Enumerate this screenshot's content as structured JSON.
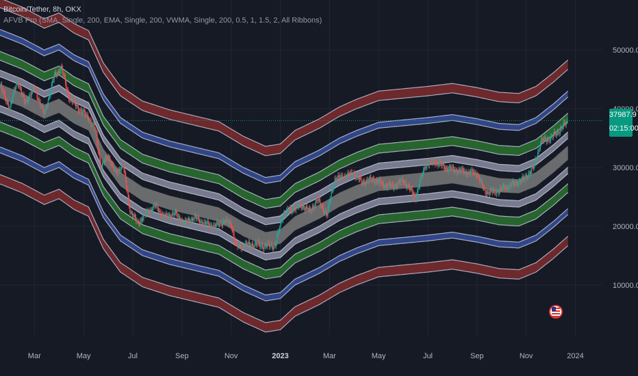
{
  "legend": {
    "symbol": "Bitcoin/Tether, 8h, OKX",
    "indicator": "AFVB Pro (SMA, Single, 200, EMA, Single, 200, VWMA, Single, 200, 0.5, 1, 1.5, 2, All Ribbons)"
  },
  "price_tag": {
    "price": "37987.9",
    "countdown": "02:15:00"
  },
  "colors": {
    "background": "#161a25",
    "center_band": "#808080",
    "inner_band": "#c8cce4",
    "green_band": "#2e7d32",
    "blue_band": "#3a55a8",
    "red_band": "#8b2f2f",
    "candle_up": "#26a69a",
    "candle_down": "#ef5350",
    "price_line": "#089981"
  },
  "chart_data": {
    "type": "line",
    "title": "",
    "xlabel": "",
    "ylabel": "",
    "x_ticks": [
      {
        "label": "Mar",
        "t": 2
      },
      {
        "label": "May",
        "t": 4
      },
      {
        "label": "Jul",
        "t": 6
      },
      {
        "label": "Sep",
        "t": 8
      },
      {
        "label": "Nov",
        "t": 10
      },
      {
        "label": "2023",
        "t": 12,
        "bold": true
      },
      {
        "label": "Mar",
        "t": 14
      },
      {
        "label": "May",
        "t": 16
      },
      {
        "label": "Jul",
        "t": 18
      },
      {
        "label": "Sep",
        "t": 20
      },
      {
        "label": "Nov",
        "t": 22
      },
      {
        "label": "2024",
        "t": 24
      }
    ],
    "y_ticks": [
      10000,
      20000,
      30000,
      40000,
      50000
    ],
    "y_tick_labels": [
      "10000.0",
      "20000.0",
      "30000.0",
      "40000.0",
      "50000.0"
    ],
    "ylim": [
      1500,
      58500
    ],
    "xlim": [
      0.6,
      25.1
    ],
    "last_price": 37987.9,
    "center_line": [
      [
        0.6,
        43000
      ],
      [
        1.5,
        41500
      ],
      [
        2.4,
        39500
      ],
      [
        3.0,
        40500
      ],
      [
        3.6,
        38700
      ],
      [
        4.2,
        37500
      ],
      [
        4.8,
        32000
      ],
      [
        5.5,
        28000
      ],
      [
        6.4,
        25500
      ],
      [
        7.5,
        24000
      ],
      [
        8.5,
        23000
      ],
      [
        9.5,
        22000
      ],
      [
        10.5,
        19500
      ],
      [
        11.4,
        17800
      ],
      [
        12.0,
        18200
      ],
      [
        12.6,
        20500
      ],
      [
        13.6,
        22500
      ],
      [
        14.4,
        24500
      ],
      [
        15.1,
        25800
      ],
      [
        16.0,
        27200
      ],
      [
        17.0,
        27600
      ],
      [
        18.0,
        28000
      ],
      [
        19.0,
        28500
      ],
      [
        20.0,
        27800
      ],
      [
        20.9,
        27000
      ],
      [
        21.7,
        26800
      ],
      [
        22.4,
        28000
      ],
      [
        23.1,
        30300
      ],
      [
        23.7,
        32500
      ]
    ],
    "band_offsets": [
      {
        "name": "inner_upper",
        "offset": 3000,
        "width": 1100
      },
      {
        "name": "inner_lower",
        "offset": -3000,
        "width": 1100
      },
      {
        "name": "green_upper",
        "offset": 6000,
        "width": 1500
      },
      {
        "name": "green_lower",
        "offset": -6000,
        "width": 1500
      },
      {
        "name": "blue_upper",
        "offset": 10000,
        "width": 1000
      },
      {
        "name": "blue_lower",
        "offset": -10000,
        "width": 1000
      },
      {
        "name": "red_upper",
        "offset": 15000,
        "width": 1600
      },
      {
        "name": "red_lower",
        "offset": -15000,
        "width": 1600
      }
    ],
    "price_series": [
      [
        0.6,
        44000
      ],
      [
        1.0,
        40000
      ],
      [
        1.3,
        45000
      ],
      [
        1.6,
        41000
      ],
      [
        2.0,
        43500
      ],
      [
        2.4,
        39000
      ],
      [
        2.8,
        45500
      ],
      [
        3.1,
        47000
      ],
      [
        3.4,
        42000
      ],
      [
        3.8,
        40000
      ],
      [
        4.2,
        38500
      ],
      [
        4.5,
        36000
      ],
      [
        4.7,
        30000
      ],
      [
        5.0,
        32000
      ],
      [
        5.3,
        29000
      ],
      [
        5.6,
        30500
      ],
      [
        5.9,
        22500
      ],
      [
        6.2,
        20500
      ],
      [
        6.5,
        22000
      ],
      [
        6.9,
        23500
      ],
      [
        7.3,
        21500
      ],
      [
        7.7,
        22200
      ],
      [
        8.1,
        20500
      ],
      [
        8.5,
        21500
      ],
      [
        8.9,
        20500
      ],
      [
        9.3,
        20000
      ],
      [
        9.7,
        20800
      ],
      [
        10.0,
        20500
      ],
      [
        10.2,
        16500
      ],
      [
        10.6,
        16800
      ],
      [
        11.0,
        16900
      ],
      [
        11.4,
        16600
      ],
      [
        11.8,
        16800
      ],
      [
        12.1,
        22000
      ],
      [
        12.5,
        23000
      ],
      [
        12.9,
        23500
      ],
      [
        13.2,
        22500
      ],
      [
        13.5,
        24500
      ],
      [
        13.9,
        22000
      ],
      [
        14.2,
        28000
      ],
      [
        14.6,
        28500
      ],
      [
        15.0,
        29000
      ],
      [
        15.3,
        27500
      ],
      [
        15.8,
        28000
      ],
      [
        16.2,
        27000
      ],
      [
        16.6,
        26800
      ],
      [
        17.0,
        27800
      ],
      [
        17.5,
        25000
      ],
      [
        17.9,
        30500
      ],
      [
        18.3,
        31000
      ],
      [
        18.7,
        30000
      ],
      [
        19.2,
        29500
      ],
      [
        19.6,
        29200
      ],
      [
        20.0,
        29000
      ],
      [
        20.3,
        26000
      ],
      [
        20.7,
        25800
      ],
      [
        21.1,
        26500
      ],
      [
        21.5,
        27200
      ],
      [
        21.9,
        28000
      ],
      [
        22.3,
        30000
      ],
      [
        22.6,
        34500
      ],
      [
        23.0,
        35000
      ],
      [
        23.4,
        36500
      ],
      [
        23.7,
        37988
      ]
    ]
  }
}
